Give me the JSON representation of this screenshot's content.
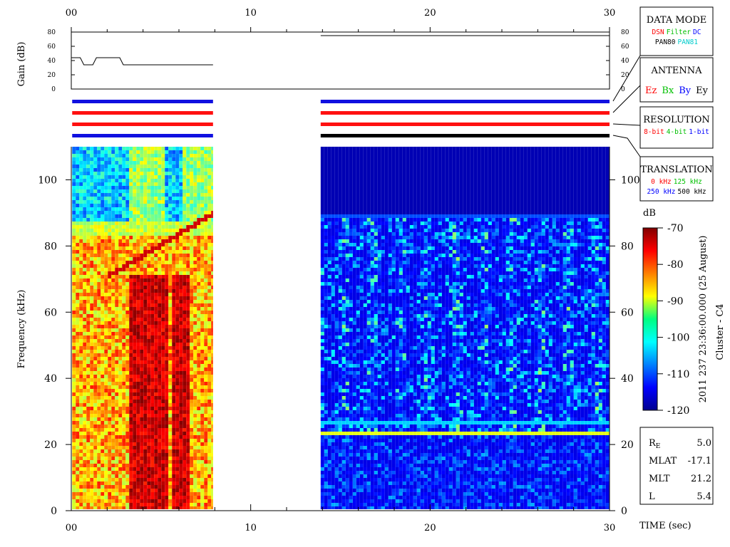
{
  "chart_data": {
    "type": "spectrogram",
    "xlabel": "TIME (sec)",
    "xlim": [
      0,
      30
    ],
    "xticks": [
      {
        "value": 0,
        "label": "00"
      },
      10,
      20,
      30
    ],
    "xminorticks": [
      2,
      4,
      6,
      8,
      12,
      14,
      16,
      18,
      22,
      24,
      26,
      28
    ],
    "ylabel": "Frequency (kHz)",
    "ylim": [
      0,
      110
    ],
    "yticks": [
      0,
      20,
      40,
      60,
      80,
      100
    ],
    "gain": {
      "ylabel": "Gain (dB)",
      "ylim": [
        0,
        80
      ],
      "yticks": [
        0,
        20,
        40,
        60,
        80
      ],
      "color": "#000000",
      "x": [
        0,
        0.5,
        0.7,
        1.2,
        1.4,
        2.7,
        2.9,
        7.9,
        null,
        13.9,
        30
      ],
      "values": [
        44,
        44,
        34,
        34,
        44,
        44,
        34,
        34,
        null,
        75,
        75
      ]
    },
    "segments": [
      {
        "start": 0.05,
        "end": 7.9,
        "mode_colors": [
          "#1010e0",
          "#ff1010",
          "#ff1010",
          "#1010e0"
        ]
      },
      {
        "start": 13.9,
        "end": 30,
        "mode_colors": [
          "#1010e0",
          "#ff1010",
          "#ff1010",
          "#000000"
        ]
      }
    ],
    "colorbar": {
      "label": "dB",
      "lim": [
        -120,
        -70
      ],
      "ticks": [
        -70,
        -80,
        -90,
        -100,
        -110,
        -120
      ]
    },
    "annotations": [
      "2011 237 23:36:00.000 (25 August)",
      "Cluster - C4"
    ]
  },
  "legend_boxes": [
    {
      "title": "DATA MODE",
      "rows": [
        [
          {
            "text": "DSN",
            "color": "#ff0000"
          },
          {
            "text": "Filter",
            "color": "#00c000"
          },
          {
            "text": "DC",
            "color": "#0000ff"
          }
        ],
        [
          {
            "text": "PAN80",
            "color": "#000000"
          },
          {
            "text": "PAN81",
            "color": "#00cccc"
          }
        ]
      ]
    },
    {
      "title": "ANTENNA",
      "rows": [
        [
          {
            "text": "Ez",
            "color": "#ff0000"
          },
          {
            "text": "Bx",
            "color": "#00c000"
          },
          {
            "text": "By",
            "color": "#0000ff"
          },
          {
            "text": "Ey",
            "color": "#000000"
          }
        ]
      ]
    },
    {
      "title": "RESOLUTION",
      "rows": [
        [
          {
            "text": "8-bit",
            "color": "#ff0000"
          },
          {
            "text": "4-bit",
            "color": "#00c000"
          },
          {
            "text": "1-bit",
            "color": "#0000ff"
          }
        ]
      ]
    },
    {
      "title": "TRANSLATION",
      "rows": [
        [
          {
            "text": "0 kHz",
            "color": "#ff0000"
          },
          {
            "text": "125 kHz",
            "color": "#00c000"
          }
        ],
        [
          {
            "text": "250 kHz",
            "color": "#0000ff"
          },
          {
            "text": "500 kHz",
            "color": "#000000"
          }
        ]
      ]
    }
  ],
  "info": [
    {
      "label": "R",
      "subscript": "E",
      "value": "5.0"
    },
    {
      "label": "MLAT",
      "value": "-17.1"
    },
    {
      "label": "MLT",
      "value": "21.2"
    },
    {
      "label": "L",
      "value": "5.4"
    }
  ]
}
